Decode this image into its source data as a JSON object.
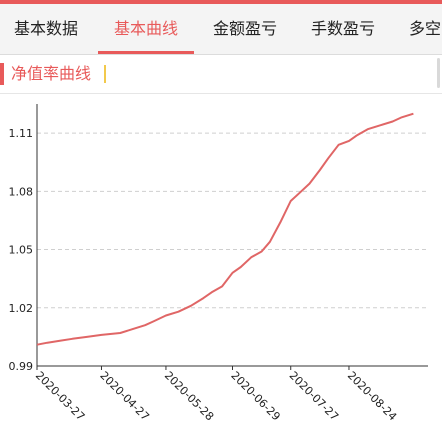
{
  "tabs": [
    {
      "label": "基本数据",
      "active": false
    },
    {
      "label": "基本曲线",
      "active": true
    },
    {
      "label": "金额盈亏",
      "active": false
    },
    {
      "label": "手数盈亏",
      "active": false
    },
    {
      "label": "多空",
      "active": false
    }
  ],
  "section": {
    "title": "净值率曲线"
  },
  "colors": {
    "accent": "#e85a5a",
    "line": "#e06666",
    "grid": "#cfcfcf"
  },
  "chart_data": {
    "type": "line",
    "title": "",
    "xlabel": "",
    "ylabel": "",
    "ylim": [
      0.99,
      1.125
    ],
    "yticks": [
      0.99,
      1.02,
      1.05,
      1.08,
      1.11
    ],
    "ytick_labels": [
      "0.99",
      "1.02",
      "1.05",
      "1.08",
      "1.11"
    ],
    "xticks": [
      "2020-03-27",
      "2020-04-27",
      "2020-05-28",
      "2020-06-29",
      "2020-07-27",
      "2020-08-24"
    ],
    "grid": "horizontal-dashed",
    "series": [
      {
        "x": [
          "2020-03-27",
          "2020-04-01",
          "2020-04-07",
          "2020-04-13",
          "2020-04-20",
          "2020-04-27",
          "2020-05-06",
          "2020-05-12",
          "2020-05-18",
          "2020-05-22",
          "2020-05-28",
          "2020-06-03",
          "2020-06-09",
          "2020-06-15",
          "2020-06-19",
          "2020-06-24",
          "2020-06-29",
          "2020-07-03",
          "2020-07-08",
          "2020-07-13",
          "2020-07-17",
          "2020-07-22",
          "2020-07-27",
          "2020-07-31",
          "2020-08-05",
          "2020-08-10",
          "2020-08-14",
          "2020-08-19",
          "2020-08-24",
          "2020-08-28",
          "2020-09-02",
          "2020-09-08",
          "2020-09-14",
          "2020-09-18",
          "2020-09-24"
        ],
        "y": [
          1.001,
          1.002,
          1.003,
          1.004,
          1.005,
          1.006,
          1.007,
          1.009,
          1.011,
          1.013,
          1.016,
          1.018,
          1.021,
          1.025,
          1.028,
          1.031,
          1.038,
          1.041,
          1.046,
          1.049,
          1.054,
          1.064,
          1.075,
          1.079,
          1.084,
          1.091,
          1.097,
          1.104,
          1.106,
          1.109,
          1.112,
          1.114,
          1.116,
          1.118,
          1.12
        ]
      }
    ]
  }
}
